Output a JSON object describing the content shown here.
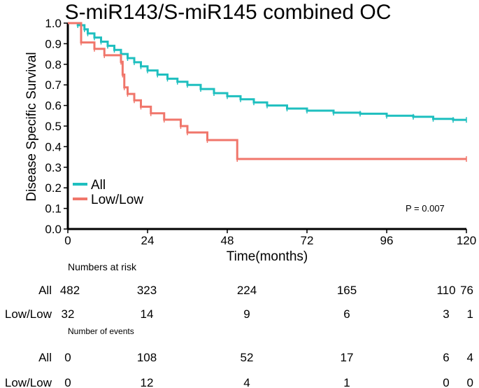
{
  "chart_data": {
    "type": "line",
    "subtype": "kaplan-meier",
    "title": "S-miR143/S-miR145 combined OC",
    "xlabel": "Time(months)",
    "ylabel": "Disease Specific Survival",
    "xlim": [
      0,
      120
    ],
    "ylim": [
      0.0,
      1.0
    ],
    "xticks": [
      0,
      24,
      48,
      72,
      96,
      120
    ],
    "yticks": [
      0.0,
      0.1,
      0.2,
      0.3,
      0.4,
      0.5,
      0.6,
      0.7,
      0.8,
      0.9,
      1.0
    ],
    "ytick_labels": [
      "0.0",
      "0.1",
      "0.2",
      "0.3",
      "0.4",
      "0.5",
      "0.6",
      "0.7",
      "0.8",
      "0.9",
      "1.0"
    ],
    "legend_position": "bottom-left",
    "annotation": "P = 0.007",
    "series": [
      {
        "name": "All",
        "color": "#1fbfbf",
        "x": [
          0,
          3,
          5,
          6,
          8,
          10,
          12,
          14,
          16,
          18,
          20,
          22,
          24,
          27,
          30,
          33,
          36,
          40,
          44,
          48,
          52,
          56,
          60,
          66,
          72,
          80,
          88,
          96,
          104,
          110,
          116,
          120
        ],
        "y": [
          1.0,
          0.99,
          0.97,
          0.95,
          0.93,
          0.91,
          0.89,
          0.87,
          0.85,
          0.83,
          0.81,
          0.79,
          0.77,
          0.75,
          0.73,
          0.715,
          0.7,
          0.68,
          0.66,
          0.645,
          0.63,
          0.615,
          0.6,
          0.585,
          0.575,
          0.565,
          0.56,
          0.55,
          0.545,
          0.535,
          0.53,
          0.53
        ]
      },
      {
        "name": "Low/Low",
        "color": "#f0766b",
        "x": [
          0,
          4,
          8,
          11,
          16,
          16.5,
          17,
          18,
          20,
          22,
          25,
          29,
          34,
          36,
          42,
          51,
          120
        ],
        "y": [
          1.0,
          0.906,
          0.875,
          0.844,
          0.812,
          0.75,
          0.688,
          0.656,
          0.625,
          0.594,
          0.562,
          0.531,
          0.5,
          0.469,
          0.432,
          0.34,
          0.34
        ]
      }
    ]
  },
  "risk_table": {
    "heading": "Numbers at risk",
    "columns": [
      "0",
      "24",
      "48",
      "72",
      "96",
      "120"
    ],
    "rows": [
      {
        "label": "All",
        "values": [
          "482",
          "323",
          "224",
          "165",
          "110",
          "76"
        ]
      },
      {
        "label": "Low/Low",
        "values": [
          "32",
          "14",
          "9",
          "6",
          "3",
          "1"
        ]
      }
    ]
  },
  "events_table": {
    "heading": "Number of events",
    "rows": [
      {
        "label": "All",
        "values": [
          "0",
          "108",
          "52",
          "17",
          "6",
          "4"
        ]
      },
      {
        "label": "Low/Low",
        "values": [
          "0",
          "12",
          "4",
          "1",
          "0",
          "0"
        ]
      }
    ]
  }
}
